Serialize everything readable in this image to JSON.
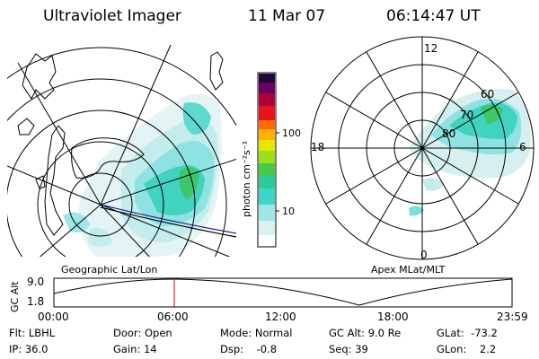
{
  "header": {
    "instrument": "Ultraviolet Imager",
    "date": "11 Mar 07",
    "time": "06:14:47 UT"
  },
  "colorbar": {
    "unit_label": "photon cm⁻²s⁻¹",
    "ticks": [
      "100",
      "10"
    ],
    "colors": [
      "#ffffff",
      "#d9f1f1",
      "#9fe6e6",
      "#3fd6c8",
      "#2acc9c",
      "#46c84a",
      "#9be01a",
      "#e6e600",
      "#ffb000",
      "#ff6a00",
      "#e8141a",
      "#b0003a",
      "#6a0066",
      "#1a0a3a"
    ]
  },
  "left_map": {
    "caption": "Geographic Lat/Lon"
  },
  "right_map": {
    "caption": "Apex  MLat/MLT",
    "mlt_labels": {
      "top": "12",
      "bottom": "0",
      "left": "18",
      "right": "6"
    },
    "lat_labels": [
      "60",
      "70",
      "80"
    ]
  },
  "altitude_plot": {
    "ylabel": "GC Alt",
    "y_ticks": [
      "9.0",
      "1.8"
    ],
    "x_ticks": [
      "00:00",
      "06:00",
      "12:00",
      "18:00",
      "23:59"
    ],
    "marker_color": "#d00000"
  },
  "info": {
    "flt": "Flt: LBHL",
    "ip": "IP: 36.0",
    "door": "Door: Open",
    "gain": "Gain: 14",
    "mode": "Mode: Normal",
    "dsp": "Dsp:    -0.8",
    "gcalt": "GC Alt: 9.0 Re",
    "seq": "Seq: 39",
    "glat": "GLat:  -73.2",
    "glon": "GLon:    2.2"
  },
  "colors": {
    "glow_light": "#cfeeee",
    "glow_mid": "#7fdede",
    "glow_strong": "#2fcfb8",
    "glow_green": "#3cc86a",
    "coast": "#000000",
    "track": "#1a1a8a"
  }
}
